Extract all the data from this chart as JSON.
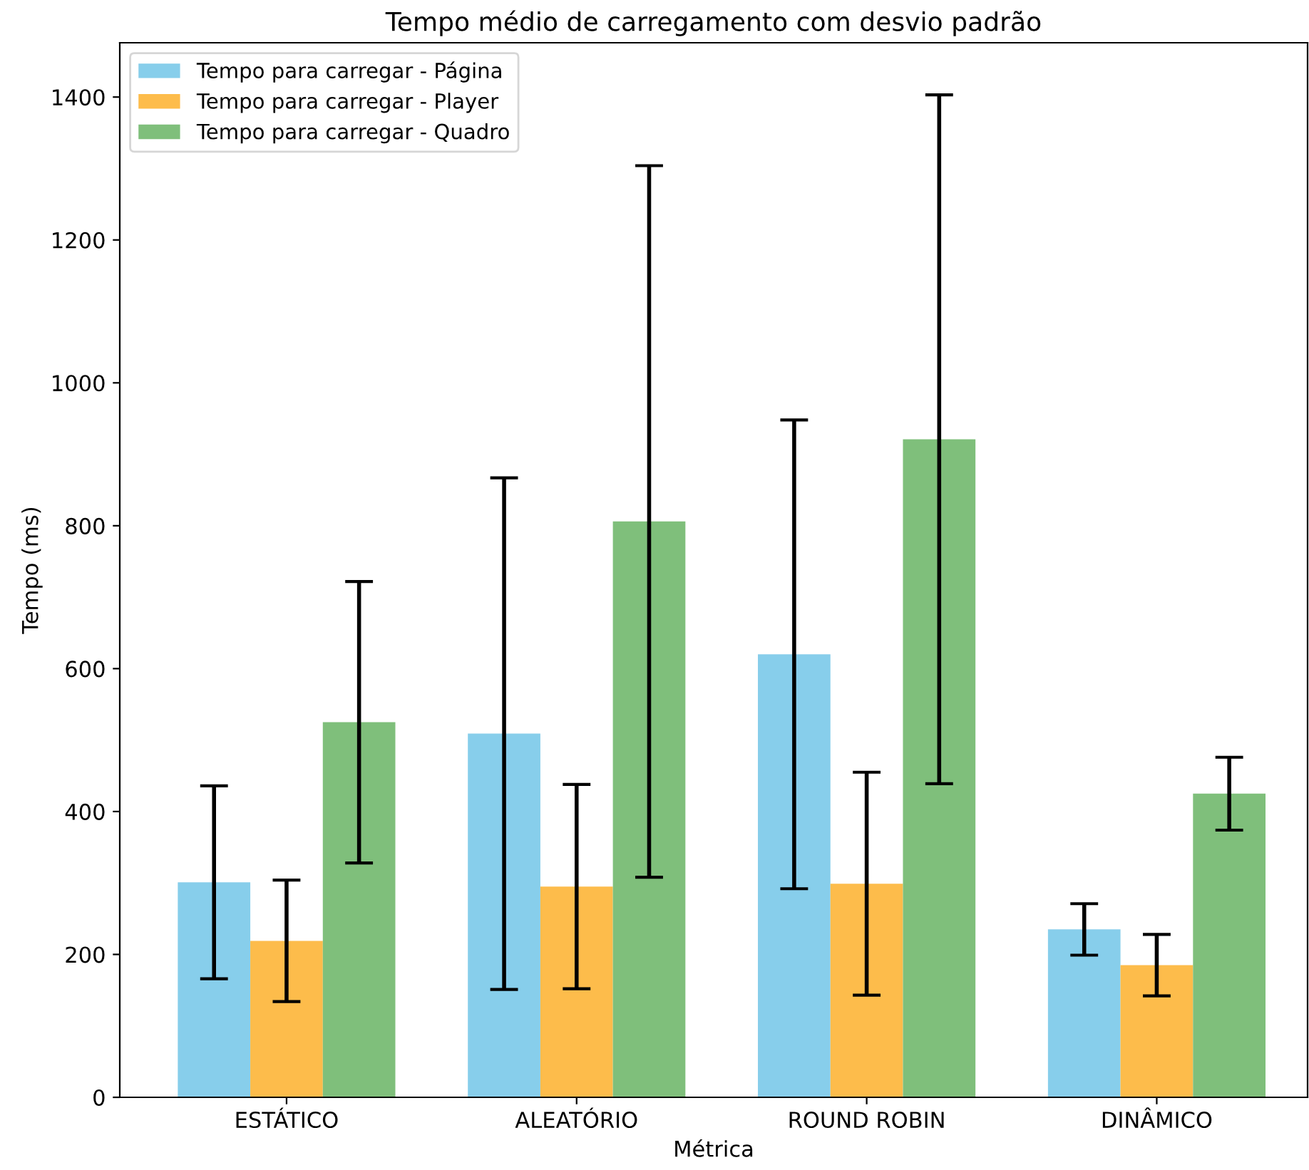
{
  "chart_data": {
    "type": "bar",
    "title": "Tempo médio de carregamento com desvio padrão",
    "xlabel": "Métrica",
    "ylabel": "Tempo (ms)",
    "categories": [
      "ESTÁTICO",
      "ALEATÓRIO",
      "ROUND ROBIN",
      "DINÂMICO"
    ],
    "series": [
      {
        "name": "Tempo para carregar - Página",
        "color": "#87ceeb",
        "values": [
          301,
          509,
          620,
          235
        ],
        "errors": [
          135,
          358,
          328,
          36
        ]
      },
      {
        "name": "Tempo para carregar - Player",
        "color": "#fdbc4b",
        "values": [
          219,
          295,
          299,
          185
        ],
        "errors": [
          85,
          143,
          156,
          43
        ]
      },
      {
        "name": "Tempo para carregar - Quadro",
        "color": "#7fbf7b",
        "values": [
          525,
          806,
          921,
          425
        ],
        "errors": [
          197,
          498,
          482,
          51
        ]
      }
    ],
    "ylim": [
      0,
      1476
    ],
    "yticks": [
      0,
      200,
      400,
      600,
      800,
      1000,
      1200,
      1400
    ],
    "grid": false,
    "legend": "top left"
  }
}
